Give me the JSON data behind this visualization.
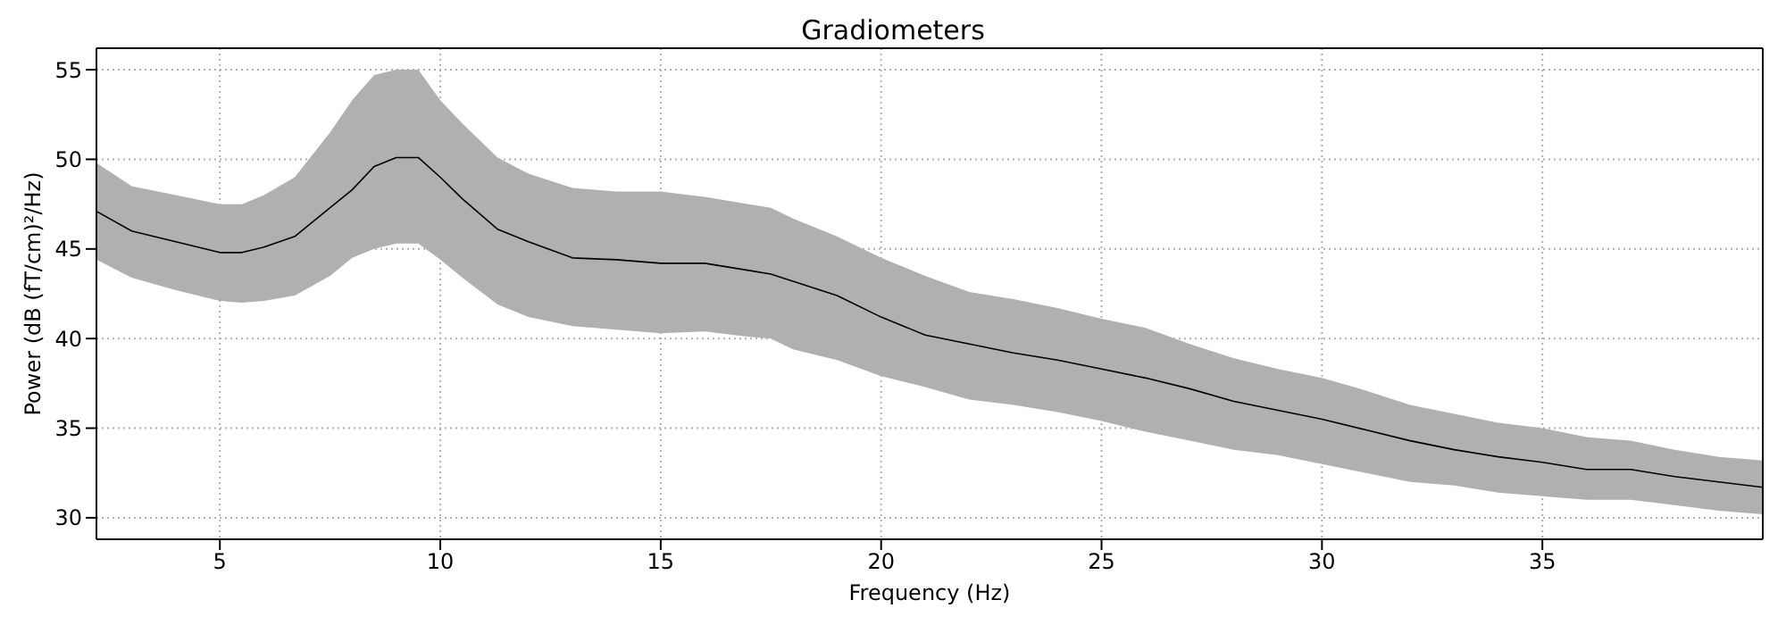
{
  "chart_data": {
    "type": "line",
    "title": "Gradiometers",
    "xlabel": "Frequency (Hz)",
    "ylabel": "Power (dB (fT/cm)²/Hz)",
    "x": [
      2.2,
      3,
      4,
      5,
      5.5,
      6,
      6.7,
      7.5,
      8,
      8.5,
      9,
      9.5,
      10,
      10.5,
      11.3,
      12,
      13,
      14,
      15,
      16,
      17,
      17.5,
      18,
      19,
      20,
      21,
      22,
      23,
      24,
      25,
      26,
      27,
      28,
      29,
      30,
      31,
      32,
      33,
      34,
      35,
      36,
      37,
      38,
      39,
      40
    ],
    "series": [
      {
        "color": "#000000",
        "values": [
          47.1,
          46.0,
          45.4,
          44.8,
          44.8,
          45.1,
          45.7,
          47.3,
          48.3,
          49.6,
          50.1,
          50.1,
          49.0,
          47.8,
          46.1,
          45.4,
          44.5,
          44.4,
          44.2,
          44.2,
          43.8,
          43.6,
          43.2,
          42.4,
          41.2,
          40.2,
          39.7,
          39.2,
          38.8,
          38.3,
          37.8,
          37.2,
          36.5,
          36.0,
          35.5,
          34.9,
          34.3,
          33.8,
          33.4,
          33.1,
          32.7,
          32.7,
          32.3,
          32.0,
          31.7
        ],
        "lower": [
          44.4,
          43.4,
          42.7,
          42.1,
          42.0,
          42.1,
          42.4,
          43.5,
          44.5,
          45.0,
          45.3,
          45.3,
          44.4,
          43.4,
          41.9,
          41.2,
          40.7,
          40.5,
          40.3,
          40.4,
          40.1,
          40.0,
          39.4,
          38.8,
          37.9,
          37.3,
          36.6,
          36.3,
          35.9,
          35.4,
          34.8,
          34.3,
          33.8,
          33.5,
          33.0,
          32.5,
          32.0,
          31.8,
          31.4,
          31.2,
          31.0,
          31.0,
          30.7,
          30.4,
          30.2
        ],
        "upper": [
          49.8,
          48.5,
          48.0,
          47.5,
          47.5,
          48.0,
          49.0,
          51.5,
          53.3,
          54.7,
          55.0,
          55.0,
          53.3,
          52.0,
          50.1,
          49.2,
          48.4,
          48.2,
          48.2,
          47.9,
          47.5,
          47.3,
          46.7,
          45.7,
          44.5,
          43.5,
          42.6,
          42.2,
          41.7,
          41.1,
          40.6,
          39.7,
          38.9,
          38.3,
          37.8,
          37.1,
          36.3,
          35.8,
          35.3,
          35.0,
          34.5,
          34.3,
          33.8,
          33.4,
          33.2
        ]
      }
    ],
    "xlim": [
      2.2,
      40
    ],
    "xticks": [
      5,
      10,
      15,
      20,
      25,
      30,
      35
    ],
    "ylim": [
      28.8,
      56.2
    ],
    "yticks": [
      30,
      35,
      40,
      45,
      50,
      55
    ],
    "grid": true,
    "line_style": "solid",
    "marker": "none"
  }
}
